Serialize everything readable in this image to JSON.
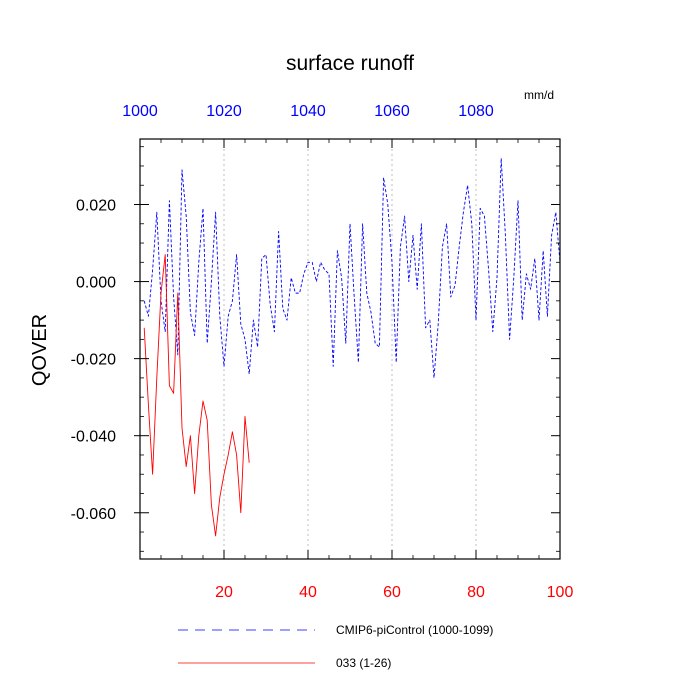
{
  "chart_data": {
    "type": "line",
    "title": "surface runoff",
    "units": "mm/d",
    "ylabel": "QOVER",
    "xlabel": "",
    "xlim": [
      0,
      100
    ],
    "ylim": [
      -0.072,
      0.037
    ],
    "grid": "vertical dashed at major x ticks",
    "y_ticks": [
      0.02,
      0.0,
      -0.02,
      -0.04,
      -0.06
    ],
    "y_tick_labels": [
      "0.020",
      "0.000",
      "-0.020",
      "-0.040",
      "-0.060"
    ],
    "x_ticks_bottom": [
      20,
      40,
      60,
      80,
      100
    ],
    "x_ticks_bottom_labels": [
      "20",
      "40",
      "60",
      "80",
      "100"
    ],
    "x_ticks_top_values": [
      1000,
      1020,
      1040,
      1060,
      1080
    ],
    "x_ticks_top_labels": [
      "1000",
      "1020",
      "1040",
      "1060",
      "1080"
    ],
    "colors": {
      "bottom_axis_labels": "#ff0000",
      "top_axis_labels": "#0000ff"
    },
    "legend_position": "bottom",
    "series": [
      {
        "name": "CMIP6-piControl (1000-1099)",
        "color": "#0000ff",
        "dash": "dashed",
        "x": [
          1,
          2,
          3,
          4,
          5,
          6,
          7,
          8,
          9,
          10,
          11,
          12,
          13,
          14,
          15,
          16,
          17,
          18,
          19,
          20,
          21,
          22,
          23,
          24,
          25,
          26,
          27,
          28,
          29,
          30,
          31,
          32,
          33,
          34,
          35,
          36,
          37,
          38,
          39,
          40,
          41,
          42,
          43,
          44,
          45,
          46,
          47,
          48,
          49,
          50,
          51,
          52,
          53,
          54,
          55,
          56,
          57,
          58,
          59,
          60,
          61,
          62,
          63,
          64,
          65,
          66,
          67,
          68,
          69,
          70,
          71,
          72,
          73,
          74,
          75,
          76,
          77,
          78,
          79,
          80,
          81,
          82,
          83,
          84,
          85,
          86,
          87,
          88,
          89,
          90,
          91,
          92,
          93,
          94,
          95,
          96,
          97,
          98,
          99,
          100
        ],
        "values": [
          -0.005,
          -0.009,
          0.003,
          0.018,
          -0.005,
          -0.013,
          0.021,
          -0.004,
          -0.019,
          0.029,
          0.017,
          -0.008,
          -0.014,
          0.005,
          0.019,
          -0.016,
          0.0,
          0.018,
          -0.009,
          -0.022,
          -0.009,
          -0.005,
          0.007,
          -0.011,
          -0.015,
          -0.024,
          -0.01,
          -0.017,
          0.006,
          0.007,
          -0.006,
          -0.013,
          0.013,
          -0.007,
          -0.01,
          0.001,
          -0.003,
          -0.003,
          0.002,
          0.005,
          0.005,
          0.0,
          0.005,
          0.003,
          0.002,
          -0.022,
          0.008,
          0.001,
          -0.016,
          0.015,
          -0.004,
          -0.021,
          0.015,
          -0.003,
          -0.008,
          -0.016,
          -0.017,
          0.027,
          0.02,
          0.005,
          -0.021,
          0.009,
          0.017,
          0.0,
          0.012,
          -0.002,
          0.015,
          -0.012,
          -0.01,
          -0.025,
          -0.011,
          0.009,
          0.015,
          -0.004,
          -0.001,
          0.009,
          0.018,
          0.025,
          0.015,
          -0.01,
          0.019,
          0.017,
          0.003,
          -0.013,
          0.001,
          0.032,
          0.012,
          -0.015,
          0.001,
          0.021,
          -0.01,
          0.002,
          -0.002,
          0.006,
          -0.01,
          0.008,
          -0.009,
          0.012,
          0.018,
          0.005
        ]
      },
      {
        "name": "033 (1-26)",
        "color": "#ff0000",
        "dash": "solid",
        "x": [
          1,
          2,
          3,
          4,
          5,
          6,
          7,
          8,
          9,
          10,
          11,
          12,
          13,
          14,
          15,
          16,
          17,
          18,
          19,
          20,
          21,
          22,
          23,
          24,
          25,
          26
        ],
        "values": [
          -0.012,
          -0.032,
          -0.05,
          -0.025,
          -0.003,
          0.007,
          -0.027,
          -0.029,
          -0.003,
          -0.038,
          -0.048,
          -0.04,
          -0.055,
          -0.04,
          -0.031,
          -0.036,
          -0.058,
          -0.066,
          -0.056,
          -0.05,
          -0.045,
          -0.039,
          -0.045,
          -0.06,
          -0.035,
          -0.047
        ]
      }
    ]
  }
}
